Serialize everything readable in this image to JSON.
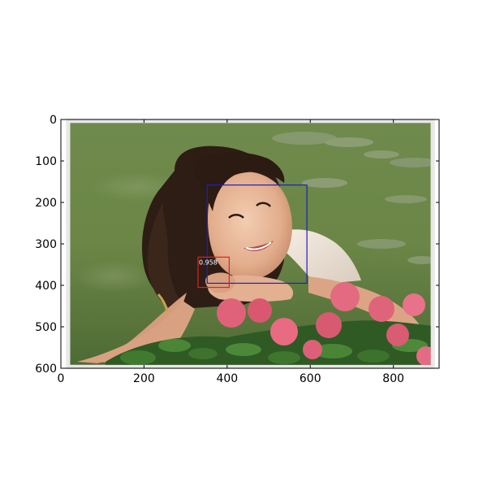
{
  "plot": {
    "x_axis": {
      "range": [
        0,
        910
      ],
      "ticks": [
        {
          "value": 0,
          "label": "0"
        },
        {
          "value": 200,
          "label": "200"
        },
        {
          "value": 400,
          "label": "400"
        },
        {
          "value": 600,
          "label": "600"
        },
        {
          "value": 800,
          "label": "800"
        }
      ]
    },
    "y_axis": {
      "range": [
        0,
        600
      ],
      "inverted": true,
      "ticks": [
        {
          "value": 0,
          "label": "0"
        },
        {
          "value": 100,
          "label": "100"
        },
        {
          "value": 200,
          "label": "200"
        },
        {
          "value": 300,
          "label": "300"
        },
        {
          "value": 400,
          "label": "400"
        },
        {
          "value": 500,
          "label": "500"
        },
        {
          "value": 600,
          "label": "600"
        }
      ]
    },
    "photo": {
      "extent": {
        "x0": 22,
        "x1": 890,
        "y0": 8,
        "y1": 592
      },
      "subject": "smiling-woman-resting-chin-on-hands-behind-pink-flowers"
    },
    "detections": [
      {
        "name": "face-box",
        "color": "#1f1fbf",
        "x0": 352,
        "y0": 158,
        "x1": 592,
        "y1": 395,
        "label": ""
      },
      {
        "name": "hand-box",
        "color": "#e61e1e",
        "x0": 330,
        "y0": 332,
        "x1": 405,
        "y1": 405,
        "label": "0.958"
      }
    ]
  }
}
